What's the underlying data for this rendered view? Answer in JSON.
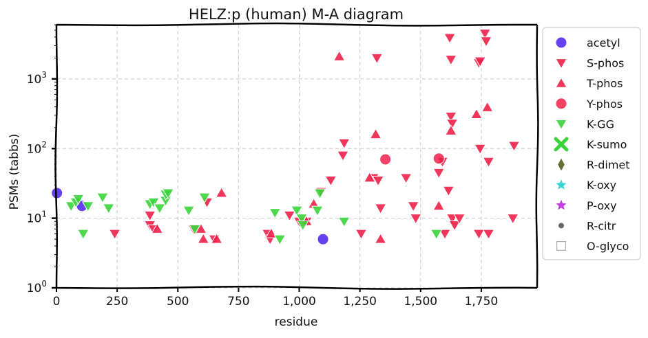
{
  "chart_data": {
    "type": "scatter",
    "title": "HELZ:p (human) M-A diagram",
    "xlabel": "residue",
    "ylabel": "PSMs (tabbs)",
    "xlim": [
      0,
      1980
    ],
    "ylim": [
      1,
      6000
    ],
    "yscale": "log",
    "grid": true,
    "legend_position": "outside-right",
    "x_ticks": [
      {
        "value": 0,
        "label": "0"
      },
      {
        "value": 250,
        "label": "250"
      },
      {
        "value": 500,
        "label": "500"
      },
      {
        "value": 750,
        "label": "750"
      },
      {
        "value": 1000,
        "label": "1,000"
      },
      {
        "value": 1250,
        "label": "1,250"
      },
      {
        "value": 1500,
        "label": "1,500"
      },
      {
        "value": 1750,
        "label": "1,750"
      }
    ],
    "y_ticks": [
      {
        "value": 1,
        "base": "10",
        "exp": "0"
      },
      {
        "value": 10,
        "base": "10",
        "exp": "1"
      },
      {
        "value": 100,
        "base": "10",
        "exp": "2"
      },
      {
        "value": 1000,
        "base": "10",
        "exp": "3"
      }
    ],
    "series": [
      {
        "name": "acetyl",
        "marker": "circle",
        "color": "#4a1ef0",
        "points": [
          [
            2,
            23
          ],
          [
            105,
            15
          ],
          [
            1098,
            5
          ]
        ]
      },
      {
        "name": "S-phos",
        "marker": "triangle-down",
        "color": "#f0204a",
        "points": [
          [
            240,
            6
          ],
          [
            385,
            11
          ],
          [
            385,
            8
          ],
          [
            400,
            7
          ],
          [
            565,
            7
          ],
          [
            620,
            17
          ],
          [
            650,
            5
          ],
          [
            870,
            6
          ],
          [
            880,
            5
          ],
          [
            960,
            11
          ],
          [
            1000,
            9
          ],
          [
            1030,
            9
          ],
          [
            1090,
            24
          ],
          [
            1130,
            35
          ],
          [
            1180,
            80
          ],
          [
            1185,
            120
          ],
          [
            1255,
            6
          ],
          [
            1305,
            38
          ],
          [
            1325,
            35
          ],
          [
            1335,
            14
          ],
          [
            1440,
            38
          ],
          [
            1470,
            15
          ],
          [
            1480,
            10
          ],
          [
            1600,
            6
          ],
          [
            1575,
            45
          ],
          [
            1590,
            65
          ],
          [
            1615,
            25
          ],
          [
            1620,
            3900
          ],
          [
            1625,
            1900
          ],
          [
            1625,
            290
          ],
          [
            1630,
            230
          ],
          [
            1630,
            10
          ],
          [
            1640,
            8
          ],
          [
            1660,
            10
          ],
          [
            1740,
            6
          ],
          [
            1740,
            1700
          ],
          [
            1745,
            1800
          ],
          [
            1745,
            100
          ],
          [
            1765,
            4500
          ],
          [
            1770,
            3500
          ],
          [
            1780,
            6
          ],
          [
            1780,
            65
          ],
          [
            1880,
            10
          ],
          [
            1885,
            110
          ],
          [
            1320,
            2000
          ]
        ]
      },
      {
        "name": "T-phos",
        "marker": "triangle-up",
        "color": "#f0204a",
        "points": [
          [
            415,
            7
          ],
          [
            595,
            7
          ],
          [
            605,
            5
          ],
          [
            660,
            5
          ],
          [
            680,
            23
          ],
          [
            885,
            6
          ],
          [
            1030,
            9
          ],
          [
            1060,
            16
          ],
          [
            1165,
            2100
          ],
          [
            1290,
            38
          ],
          [
            1335,
            5
          ],
          [
            1315,
            160
          ],
          [
            1575,
            15
          ],
          [
            1625,
            180
          ],
          [
            1730,
            310
          ],
          [
            1775,
            390
          ]
        ]
      },
      {
        "name": "Y-phos",
        "marker": "circle",
        "color": "#f0204a",
        "points": [
          [
            1355,
            70
          ],
          [
            1575,
            72
          ]
        ]
      },
      {
        "name": "K-GG",
        "marker": "triangle-down",
        "color": "#3ad43a",
        "points": [
          [
            60,
            15
          ],
          [
            80,
            17
          ],
          [
            90,
            19
          ],
          [
            110,
            6
          ],
          [
            130,
            15
          ],
          [
            190,
            20
          ],
          [
            215,
            14
          ],
          [
            385,
            16
          ],
          [
            400,
            17
          ],
          [
            425,
            14
          ],
          [
            450,
            18
          ],
          [
            450,
            22
          ],
          [
            460,
            23
          ],
          [
            545,
            13
          ],
          [
            570,
            7
          ],
          [
            610,
            20
          ],
          [
            900,
            12
          ],
          [
            920,
            5
          ],
          [
            990,
            13
          ],
          [
            1010,
            10
          ],
          [
            1015,
            8
          ],
          [
            1075,
            13
          ],
          [
            1085,
            23
          ],
          [
            1185,
            9
          ],
          [
            1565,
            6
          ]
        ]
      },
      {
        "name": "K-sumo",
        "marker": "x",
        "color": "#3ad43a",
        "points": []
      },
      {
        "name": "R-dimet",
        "marker": "diamond",
        "color": "#6b6b36",
        "points": []
      },
      {
        "name": "K-oxy",
        "marker": "star",
        "color": "#3ad4d4",
        "points": []
      },
      {
        "name": "P-oxy",
        "marker": "star",
        "color": "#c040e0",
        "points": []
      },
      {
        "name": "R-citr",
        "marker": "dot",
        "color": "#666666",
        "points": []
      },
      {
        "name": "O-glyco",
        "marker": "square-outline",
        "color": "#aaaaaa",
        "points": []
      }
    ]
  }
}
